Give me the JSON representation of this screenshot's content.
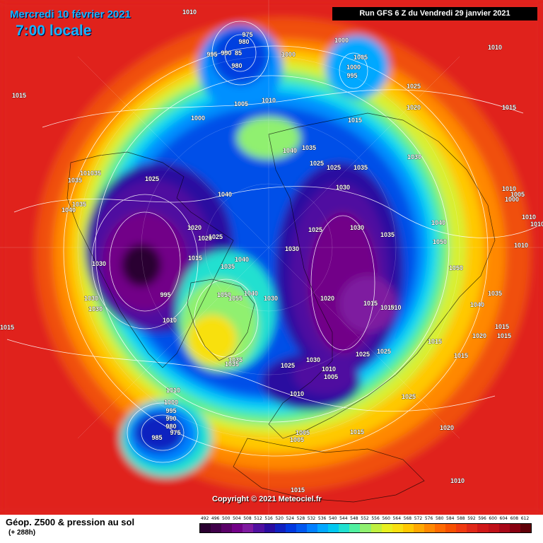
{
  "header": {
    "date": "Mercredi 10 février 2021",
    "time": "7:00 locale",
    "run": "Run GFS 6 Z du Vendredi 29 janvier 2021"
  },
  "copyright": "Copyright © 2021 Meteociel.fr",
  "footer": {
    "title": "Géop. Z500 & pression au sol",
    "subtitle": "(+ 288h)"
  },
  "scale": {
    "ticks": [
      "492",
      "496",
      "500",
      "504",
      "508",
      "512",
      "516",
      "520",
      "524",
      "528",
      "532",
      "536",
      "540",
      "544",
      "548",
      "552",
      "556",
      "560",
      "564",
      "568",
      "572",
      "576",
      "580",
      "584",
      "588",
      "592",
      "596",
      "600",
      "604",
      "608",
      "612"
    ],
    "colors": [
      "#2a0030",
      "#40004a",
      "#5a0068",
      "#720088",
      "#7e1aa0",
      "#5010a0",
      "#2a0ca0",
      "#1020c0",
      "#0038e0",
      "#0058f0",
      "#0080ff",
      "#00a8ff",
      "#00c8f0",
      "#20e0d0",
      "#50f0a0",
      "#90f070",
      "#c0f040",
      "#e8f020",
      "#f8e010",
      "#ffc800",
      "#ffa800",
      "#ff8800",
      "#ff6a00",
      "#f85000",
      "#f03a10",
      "#e02818",
      "#d01818",
      "#c01018",
      "#a80818",
      "#880010",
      "#600008"
    ]
  },
  "map": {
    "pressure_labels": [
      {
        "text": "1010",
        "pos": [
          268,
          20
        ]
      },
      {
        "text": "975",
        "pos": [
          350,
          52
        ]
      },
      {
        "text": "980",
        "pos": [
          345,
          62
        ]
      },
      {
        "text": "995",
        "pos": [
          300,
          80
        ]
      },
      {
        "text": "990",
        "pos": [
          320,
          78
        ]
      },
      {
        "text": "85",
        "pos": [
          337,
          78
        ]
      },
      {
        "text": "980",
        "pos": [
          335,
          96
        ]
      },
      {
        "text": "1000",
        "pos": [
          408,
          80
        ]
      },
      {
        "text": "1000",
        "pos": [
          483,
          60
        ]
      },
      {
        "text": "1005",
        "pos": [
          510,
          84
        ]
      },
      {
        "text": "1000",
        "pos": [
          500,
          98
        ]
      },
      {
        "text": "995",
        "pos": [
          498,
          110
        ]
      },
      {
        "text": "1010",
        "pos": [
          700,
          70
        ]
      },
      {
        "text": "1015",
        "pos": [
          27,
          138
        ]
      },
      {
        "text": "1010",
        "pos": [
          380,
          145
        ]
      },
      {
        "text": "1005",
        "pos": [
          341,
          150
        ]
      },
      {
        "text": "1025",
        "pos": [
          585,
          125
        ]
      },
      {
        "text": "1020",
        "pos": [
          585,
          155
        ]
      },
      {
        "text": "1015",
        "pos": [
          720,
          155
        ]
      },
      {
        "text": "1000",
        "pos": [
          280,
          170
        ]
      },
      {
        "text": "1015",
        "pos": [
          502,
          173
        ]
      },
      {
        "text": "1040",
        "pos": [
          410,
          216
        ]
      },
      {
        "text": "1035",
        "pos": [
          437,
          212
        ]
      },
      {
        "text": "1030",
        "pos": [
          586,
          225
        ]
      },
      {
        "text": "1025",
        "pos": [
          448,
          234
        ]
      },
      {
        "text": "1025",
        "pos": [
          472,
          240
        ]
      },
      {
        "text": "1035",
        "pos": [
          510,
          240
        ]
      },
      {
        "text": "1035",
        "pos": [
          133,
          248
        ]
      },
      {
        "text": "10",
        "pos": [
          118,
          248
        ]
      },
      {
        "text": "1035",
        "pos": [
          106,
          258
        ]
      },
      {
        "text": "1025",
        "pos": [
          215,
          256
        ]
      },
      {
        "text": "1030",
        "pos": [
          485,
          268
        ]
      },
      {
        "text": "1010",
        "pos": [
          720,
          270
        ]
      },
      {
        "text": "1005",
        "pos": [
          732,
          278
        ]
      },
      {
        "text": "1000",
        "pos": [
          724,
          285
        ]
      },
      {
        "text": "1035",
        "pos": [
          112,
          292
        ]
      },
      {
        "text": "1040",
        "pos": [
          97,
          300
        ]
      },
      {
        "text": "1040",
        "pos": [
          318,
          278
        ]
      },
      {
        "text": "1010",
        "pos": [
          748,
          310
        ]
      },
      {
        "text": "1010",
        "pos": [
          760,
          320
        ]
      },
      {
        "text": "1040",
        "pos": [
          620,
          318
        ]
      },
      {
        "text": "1020",
        "pos": [
          275,
          325
        ]
      },
      {
        "text": "1025",
        "pos": [
          446,
          328
        ]
      },
      {
        "text": "1030",
        "pos": [
          505,
          325
        ]
      },
      {
        "text": "1035",
        "pos": [
          548,
          335
        ]
      },
      {
        "text": "1025",
        "pos": [
          305,
          338
        ]
      },
      {
        "text": "1020",
        "pos": [
          290,
          340
        ]
      },
      {
        "text": "1050",
        "pos": [
          622,
          345
        ]
      },
      {
        "text": "1010",
        "pos": [
          737,
          350
        ]
      },
      {
        "text": "1030",
        "pos": [
          413,
          355
        ]
      },
      {
        "text": "1015",
        "pos": [
          276,
          368
        ]
      },
      {
        "text": "1040",
        "pos": [
          342,
          370
        ]
      },
      {
        "text": "1030",
        "pos": [
          140,
          376
        ]
      },
      {
        "text": "1035",
        "pos": [
          322,
          380
        ]
      },
      {
        "text": "1050",
        "pos": [
          645,
          382
        ]
      },
      {
        "text": "1035",
        "pos": [
          700,
          418
        ]
      },
      {
        "text": "995",
        "pos": [
          234,
          420
        ]
      },
      {
        "text": "1050",
        "pos": [
          317,
          420
        ]
      },
      {
        "text": "1055",
        "pos": [
          333,
          425
        ]
      },
      {
        "text": "1040",
        "pos": [
          355,
          418
        ]
      },
      {
        "text": "1030",
        "pos": [
          383,
          425
        ]
      },
      {
        "text": "1020",
        "pos": [
          463,
          425
        ]
      },
      {
        "text": "1030",
        "pos": [
          129,
          425
        ]
      },
      {
        "text": "1015",
        "pos": [
          524,
          432
        ]
      },
      {
        "text": "1010",
        "pos": [
          548,
          438
        ]
      },
      {
        "text": "510",
        "pos": [
          560,
          438
        ]
      },
      {
        "text": "1040",
        "pos": [
          675,
          434
        ]
      },
      {
        "text": "1030",
        "pos": [
          135,
          440
        ]
      },
      {
        "text": "1010",
        "pos": [
          240,
          456
        ]
      },
      {
        "text": "1015",
        "pos": [
          710,
          465
        ]
      },
      {
        "text": "1020",
        "pos": [
          678,
          478
        ]
      },
      {
        "text": "1015",
        "pos": [
          713,
          478
        ]
      },
      {
        "text": "1015",
        "pos": [
          10,
          466
        ]
      },
      {
        "text": "1015",
        "pos": [
          615,
          486
        ]
      },
      {
        "text": "1025",
        "pos": [
          543,
          500
        ]
      },
      {
        "text": "1025",
        "pos": [
          513,
          504
        ]
      },
      {
        "text": "1030",
        "pos": [
          443,
          512
        ]
      },
      {
        "text": "1035",
        "pos": [
          333,
          512
        ]
      },
      {
        "text": "1035",
        "pos": [
          328,
          518
        ]
      },
      {
        "text": "1025",
        "pos": [
          407,
          520
        ]
      },
      {
        "text": "1015",
        "pos": [
          652,
          506
        ]
      },
      {
        "text": "1010",
        "pos": [
          465,
          525
        ]
      },
      {
        "text": "1005",
        "pos": [
          468,
          536
        ]
      },
      {
        "text": "1010",
        "pos": [
          420,
          560
        ]
      },
      {
        "text": "1010",
        "pos": [
          245,
          555
        ]
      },
      {
        "text": "1000",
        "pos": [
          242,
          572
        ]
      },
      {
        "text": "1025",
        "pos": [
          578,
          564
        ]
      },
      {
        "text": "995",
        "pos": [
          242,
          584
        ]
      },
      {
        "text": "990",
        "pos": [
          242,
          595
        ]
      },
      {
        "text": "980",
        "pos": [
          242,
          606
        ]
      },
      {
        "text": "975",
        "pos": [
          248,
          615
        ]
      },
      {
        "text": "985",
        "pos": [
          222,
          622
        ]
      },
      {
        "text": "1005",
        "pos": [
          428,
          615
        ]
      },
      {
        "text": "1005",
        "pos": [
          420,
          625
        ]
      },
      {
        "text": "1015",
        "pos": [
          505,
          614
        ]
      },
      {
        "text": "1020",
        "pos": [
          632,
          608
        ]
      },
      {
        "text": "1010",
        "pos": [
          647,
          683
        ]
      },
      {
        "text": "1015",
        "pos": [
          421,
          696
        ]
      }
    ]
  }
}
